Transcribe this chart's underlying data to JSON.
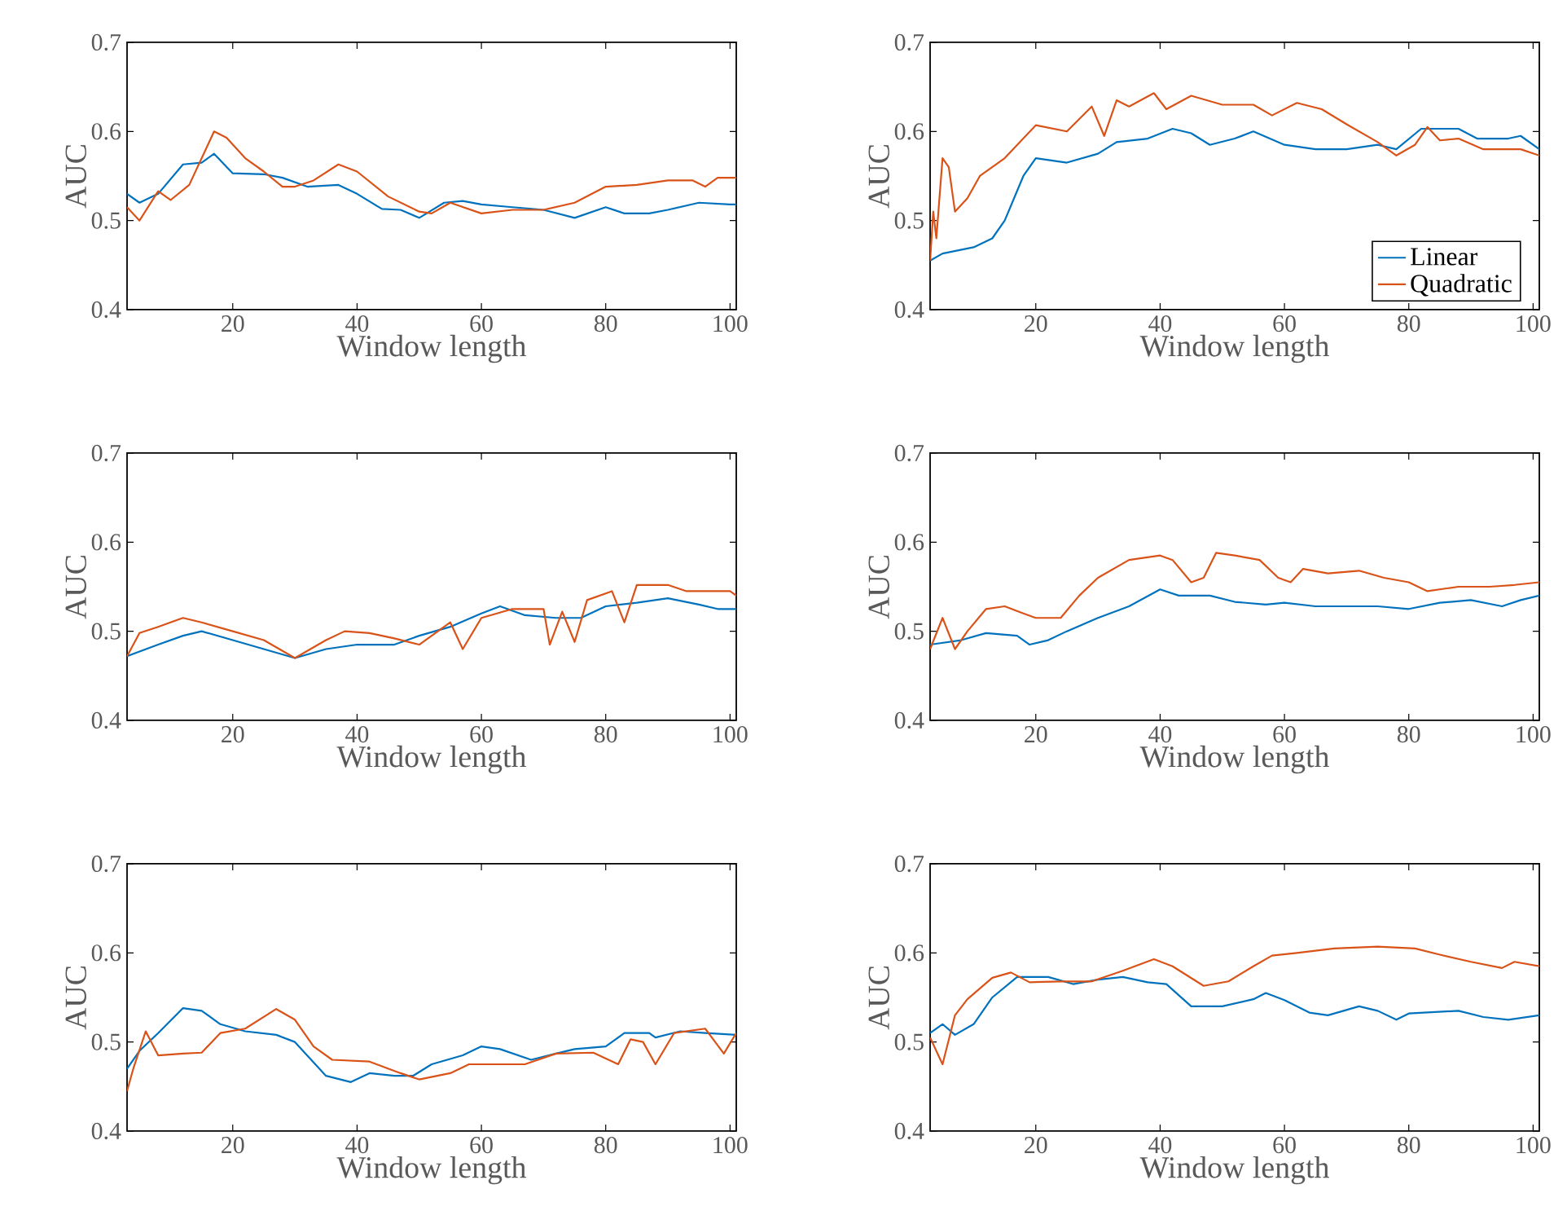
{
  "chart_data": [
    {
      "type": "line",
      "xlabel": "Window length",
      "ylabel": "AUC",
      "xlim": [
        3,
        101
      ],
      "xticks": [
        20,
        40,
        60,
        80,
        100
      ],
      "ylim": [
        0.4,
        0.7
      ],
      "yticks": [
        0.4,
        0.5,
        0.6,
        0.7
      ],
      "series": [
        {
          "color": "#0072bd",
          "x": [
            3,
            5,
            8,
            12,
            15,
            17,
            20,
            25,
            28,
            32,
            37,
            40,
            44,
            47,
            50,
            54,
            57,
            60,
            65,
            70,
            75,
            80,
            83,
            87,
            90,
            95,
            100,
            101
          ],
          "values": [
            0.53,
            0.52,
            0.53,
            0.563,
            0.565,
            0.575,
            0.553,
            0.552,
            0.548,
            0.538,
            0.54,
            0.53,
            0.513,
            0.512,
            0.503,
            0.52,
            0.522,
            0.518,
            0.515,
            0.512,
            0.503,
            0.515,
            0.508,
            0.508,
            0.512,
            0.52,
            0.518,
            0.518
          ]
        },
        {
          "color": "#d95319",
          "x": [
            3,
            5,
            8,
            10,
            13,
            17,
            19,
            22,
            25,
            28,
            30,
            33,
            37,
            40,
            45,
            50,
            52,
            55,
            60,
            65,
            70,
            75,
            80,
            85,
            90,
            94,
            96,
            98,
            101
          ],
          "values": [
            0.515,
            0.5,
            0.533,
            0.523,
            0.54,
            0.6,
            0.593,
            0.57,
            0.555,
            0.538,
            0.538,
            0.545,
            0.563,
            0.555,
            0.527,
            0.51,
            0.508,
            0.52,
            0.508,
            0.512,
            0.512,
            0.52,
            0.538,
            0.54,
            0.545,
            0.545,
            0.538,
            0.548,
            0.548
          ]
        }
      ]
    },
    {
      "type": "line",
      "xlabel": "Window length",
      "ylabel": "AUC",
      "xlim": [
        3,
        101
      ],
      "xticks": [
        20,
        40,
        60,
        80,
        100
      ],
      "ylim": [
        0.4,
        0.7
      ],
      "yticks": [
        0.4,
        0.5,
        0.6,
        0.7
      ],
      "legend": "bottom right",
      "series": [
        {
          "name": "Linear",
          "color": "#0072bd",
          "x": [
            3,
            5,
            10,
            13,
            15,
            18,
            20,
            25,
            30,
            33,
            38,
            42,
            45,
            48,
            52,
            55,
            60,
            65,
            70,
            75,
            78,
            82,
            88,
            91,
            96,
            98,
            101
          ],
          "values": [
            0.455,
            0.463,
            0.47,
            0.48,
            0.5,
            0.55,
            0.57,
            0.565,
            0.575,
            0.588,
            0.592,
            0.603,
            0.598,
            0.585,
            0.592,
            0.6,
            0.585,
            0.58,
            0.58,
            0.585,
            0.58,
            0.603,
            0.603,
            0.592,
            0.592,
            0.595,
            0.58
          ]
        },
        {
          "name": "Quadratic",
          "color": "#d95319",
          "x": [
            3,
            3.5,
            4,
            5,
            6,
            7,
            9,
            11,
            15,
            20,
            25,
            29,
            31,
            33,
            35,
            39,
            41,
            45,
            50,
            55,
            58,
            62,
            66,
            70,
            75,
            78,
            81,
            83,
            85,
            88,
            92,
            98,
            101
          ],
          "values": [
            0.455,
            0.51,
            0.48,
            0.57,
            0.56,
            0.51,
            0.525,
            0.55,
            0.57,
            0.607,
            0.6,
            0.628,
            0.595,
            0.635,
            0.628,
            0.643,
            0.625,
            0.64,
            0.63,
            0.63,
            0.618,
            0.632,
            0.625,
            0.608,
            0.588,
            0.573,
            0.585,
            0.605,
            0.59,
            0.592,
            0.58,
            0.58,
            0.573
          ]
        }
      ]
    },
    {
      "type": "line",
      "xlabel": "Window length",
      "ylabel": "AUC",
      "xlim": [
        3,
        101
      ],
      "xticks": [
        20,
        40,
        60,
        80,
        100
      ],
      "ylim": [
        0.4,
        0.7
      ],
      "yticks": [
        0.4,
        0.5,
        0.6,
        0.7
      ],
      "series": [
        {
          "color": "#0072bd",
          "x": [
            3,
            8,
            12,
            15,
            20,
            25,
            30,
            35,
            40,
            46,
            50,
            55,
            60,
            63,
            67,
            72,
            76,
            80,
            85,
            90,
            95,
            98,
            101
          ],
          "values": [
            0.472,
            0.485,
            0.495,
            0.5,
            0.49,
            0.48,
            0.47,
            0.48,
            0.485,
            0.485,
            0.495,
            0.505,
            0.52,
            0.528,
            0.518,
            0.515,
            0.515,
            0.528,
            0.532,
            0.537,
            0.53,
            0.525,
            0.525
          ]
        },
        {
          "color": "#d95319",
          "x": [
            3,
            5,
            8,
            12,
            15,
            20,
            25,
            30,
            35,
            38,
            42,
            46,
            50,
            55,
            57,
            60,
            65,
            70,
            71,
            73,
            75,
            77,
            81,
            83,
            85,
            90,
            93,
            100,
            101
          ],
          "values": [
            0.472,
            0.498,
            0.505,
            0.515,
            0.51,
            0.5,
            0.49,
            0.47,
            0.49,
            0.5,
            0.498,
            0.492,
            0.485,
            0.51,
            0.48,
            0.515,
            0.525,
            0.525,
            0.485,
            0.522,
            0.488,
            0.535,
            0.545,
            0.51,
            0.552,
            0.552,
            0.545,
            0.545,
            0.54
          ]
        }
      ]
    },
    {
      "type": "line",
      "xlabel": "Window length",
      "ylabel": "AUC",
      "xlim": [
        3,
        101
      ],
      "xticks": [
        20,
        40,
        60,
        80,
        100
      ],
      "ylim": [
        0.4,
        0.7
      ],
      "yticks": [
        0.4,
        0.5,
        0.6,
        0.7
      ],
      "series": [
        {
          "color": "#0072bd",
          "x": [
            3,
            8,
            12,
            17,
            19,
            22,
            25,
            30,
            35,
            40,
            43,
            48,
            52,
            57,
            60,
            65,
            70,
            75,
            80,
            85,
            90,
            95,
            98,
            101
          ],
          "values": [
            0.485,
            0.49,
            0.498,
            0.495,
            0.485,
            0.49,
            0.5,
            0.515,
            0.528,
            0.547,
            0.54,
            0.54,
            0.533,
            0.53,
            0.532,
            0.528,
            0.528,
            0.528,
            0.525,
            0.532,
            0.535,
            0.528,
            0.535,
            0.54
          ]
        },
        {
          "color": "#d95319",
          "x": [
            3,
            5,
            7,
            9,
            12,
            15,
            18,
            20,
            24,
            27,
            30,
            35,
            40,
            42,
            45,
            47,
            49,
            52,
            56,
            59,
            61,
            63,
            67,
            72,
            76,
            80,
            83,
            88,
            93,
            97,
            101
          ],
          "values": [
            0.48,
            0.515,
            0.48,
            0.5,
            0.525,
            0.528,
            0.52,
            0.515,
            0.515,
            0.54,
            0.56,
            0.58,
            0.585,
            0.58,
            0.555,
            0.56,
            0.588,
            0.585,
            0.58,
            0.56,
            0.555,
            0.57,
            0.565,
            0.568,
            0.56,
            0.555,
            0.545,
            0.55,
            0.55,
            0.552,
            0.555
          ]
        }
      ]
    },
    {
      "type": "line",
      "xlabel": "Window length",
      "ylabel": "AUC",
      "xlim": [
        3,
        101
      ],
      "xticks": [
        20,
        40,
        60,
        80,
        100
      ],
      "ylim": [
        0.4,
        0.7
      ],
      "yticks": [
        0.4,
        0.5,
        0.6,
        0.7
      ],
      "series": [
        {
          "color": "#0072bd",
          "x": [
            3,
            5,
            8,
            12,
            15,
            18,
            22,
            27,
            30,
            35,
            39,
            42,
            46,
            49,
            52,
            57,
            60,
            63,
            68,
            72,
            75,
            80,
            83,
            87,
            88,
            92,
            96,
            101
          ],
          "values": [
            0.47,
            0.49,
            0.51,
            0.538,
            0.535,
            0.52,
            0.512,
            0.508,
            0.5,
            0.462,
            0.455,
            0.465,
            0.462,
            0.462,
            0.475,
            0.485,
            0.495,
            0.492,
            0.48,
            0.487,
            0.492,
            0.495,
            0.51,
            0.51,
            0.505,
            0.512,
            0.51,
            0.508
          ]
        },
        {
          "color": "#d95319",
          "x": [
            3,
            4,
            6,
            8,
            12,
            15,
            18,
            22,
            27,
            30,
            33,
            36,
            42,
            47,
            50,
            55,
            58,
            63,
            67,
            72,
            78,
            82,
            84,
            86,
            88,
            91,
            96,
            99,
            101
          ],
          "values": [
            0.445,
            0.47,
            0.512,
            0.485,
            0.487,
            0.488,
            0.51,
            0.515,
            0.537,
            0.525,
            0.495,
            0.48,
            0.478,
            0.465,
            0.458,
            0.465,
            0.475,
            0.475,
            0.475,
            0.487,
            0.488,
            0.475,
            0.503,
            0.5,
            0.475,
            0.51,
            0.515,
            0.487,
            0.51
          ]
        }
      ]
    },
    {
      "type": "line",
      "xlabel": "Window length",
      "ylabel": "AUC",
      "xlim": [
        3,
        101
      ],
      "xticks": [
        20,
        40,
        60,
        80,
        100
      ],
      "ylim": [
        0.4,
        0.7
      ],
      "yticks": [
        0.4,
        0.5,
        0.6,
        0.7
      ],
      "series": [
        {
          "color": "#0072bd",
          "x": [
            3,
            5,
            7,
            10,
            13,
            17,
            22,
            26,
            30,
            34,
            38,
            41,
            45,
            50,
            55,
            57,
            60,
            64,
            67,
            72,
            75,
            78,
            80,
            88,
            92,
            96,
            101
          ],
          "values": [
            0.51,
            0.52,
            0.508,
            0.52,
            0.55,
            0.573,
            0.573,
            0.565,
            0.57,
            0.573,
            0.567,
            0.565,
            0.54,
            0.54,
            0.548,
            0.555,
            0.547,
            0.533,
            0.53,
            0.54,
            0.535,
            0.525,
            0.532,
            0.535,
            0.528,
            0.525,
            0.53
          ]
        },
        {
          "color": "#d95319",
          "x": [
            3,
            5,
            7,
            9,
            13,
            16,
            19,
            24,
            29,
            34,
            39,
            42,
            47,
            51,
            55,
            58,
            62,
            68,
            75,
            81,
            85,
            90,
            95,
            97,
            101
          ],
          "values": [
            0.505,
            0.475,
            0.53,
            0.548,
            0.572,
            0.578,
            0.567,
            0.568,
            0.568,
            0.58,
            0.593,
            0.585,
            0.563,
            0.568,
            0.585,
            0.597,
            0.6,
            0.605,
            0.607,
            0.605,
            0.598,
            0.59,
            0.583,
            0.59,
            0.585
          ]
        }
      ]
    }
  ]
}
